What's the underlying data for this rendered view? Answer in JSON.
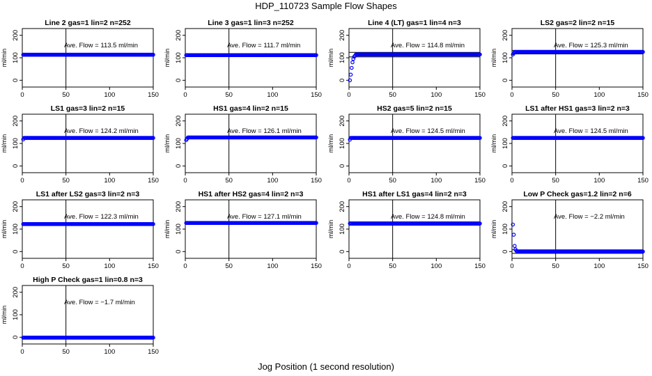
{
  "figure": {
    "title": "HDP_110723  Sample Flow Shapes",
    "xlabel": "Jog Position (1 second resolution)",
    "marker_color": "#0000ff"
  },
  "chart_data": [
    {
      "type": "scatter",
      "title": "Line 2 gas=1 lin=2 n=252",
      "annotation": "Ave. Flow =  113.5  ml/min",
      "ylabel": "ml/min",
      "xlim": [
        0,
        150
      ],
      "ylim": [
        -30,
        230
      ],
      "xticks": [
        "0",
        "50",
        "100",
        "150"
      ],
      "yticks": [
        "0",
        "100",
        "200"
      ],
      "vline": 50,
      "hline": [
        113.5
      ],
      "profile": {
        "plateau": 113.5,
        "start": []
      }
    },
    {
      "type": "scatter",
      "title": "Line 3 gas=1 lin=3 n=252",
      "annotation": "Ave. Flow =  111.7  ml/min",
      "ylabel": "ml/min",
      "xlim": [
        0,
        150
      ],
      "ylim": [
        -30,
        230
      ],
      "xticks": [
        "0",
        "50",
        "100",
        "150"
      ],
      "yticks": [
        "0",
        "100",
        "200"
      ],
      "vline": 50,
      "hline": [
        111.7
      ],
      "profile": {
        "plateau": 111.7,
        "start": []
      }
    },
    {
      "type": "scatter",
      "title": "Line 4 (LT) gas=1 lin=4 n=3",
      "annotation": "Ave. Flow =  114.8  ml/min",
      "ylabel": "ml/min",
      "xlim": [
        0,
        150
      ],
      "ylim": [
        -30,
        230
      ],
      "xticks": [
        "0",
        "50",
        "100",
        "150"
      ],
      "yticks": [
        "0",
        "100",
        "200"
      ],
      "vline": 50,
      "hline": [
        104,
        124
      ],
      "profile": {
        "plateau": 115,
        "start": [
          [
            1,
            0
          ],
          [
            2,
            25
          ],
          [
            3,
            55
          ],
          [
            4,
            80
          ],
          [
            5,
            95
          ],
          [
            6,
            105
          ],
          [
            7,
            110
          ]
        ]
      }
    },
    {
      "type": "scatter",
      "title": "LS2 gas=2 lin=2 n=15",
      "annotation": "Ave. Flow =  125.3  ml/min",
      "ylabel": "ml/min",
      "xlim": [
        0,
        150
      ],
      "ylim": [
        -30,
        230
      ],
      "xticks": [
        "0",
        "50",
        "100",
        "150"
      ],
      "yticks": [
        "0",
        "100",
        "200"
      ],
      "vline": 50,
      "hline": [
        117,
        133
      ],
      "profile": {
        "plateau": 126,
        "start": [
          [
            1,
            115
          ],
          [
            2,
            120
          ]
        ]
      }
    },
    {
      "type": "scatter",
      "title": "LS1 gas=3 lin=2 n=15",
      "annotation": "Ave. Flow =  124.2  ml/min",
      "ylabel": "ml/min",
      "xlim": [
        0,
        150
      ],
      "ylim": [
        -30,
        230
      ],
      "xticks": [
        "0",
        "50",
        "100",
        "150"
      ],
      "yticks": [
        "0",
        "100",
        "200"
      ],
      "vline": 50,
      "hline": [
        124.2
      ],
      "profile": {
        "plateau": 124.5,
        "start": [
          [
            1,
            118
          ]
        ]
      }
    },
    {
      "type": "scatter",
      "title": "HS1 gas=4 lin=2 n=15",
      "annotation": "Ave. Flow =  126.1  ml/min",
      "ylabel": "ml/min",
      "xlim": [
        0,
        150
      ],
      "ylim": [
        -30,
        230
      ],
      "xticks": [
        "0",
        "50",
        "100",
        "150"
      ],
      "yticks": [
        "0",
        "100",
        "200"
      ],
      "vline": 50,
      "hline": [
        126.1
      ],
      "profile": {
        "plateau": 126.5,
        "start": [
          [
            1,
            115
          ],
          [
            2,
            120
          ]
        ]
      }
    },
    {
      "type": "scatter",
      "title": "HS2 gas=5 lin=2 n=15",
      "annotation": "Ave. Flow =  124.5  ml/min",
      "ylabel": "ml/min",
      "xlim": [
        0,
        150
      ],
      "ylim": [
        -30,
        230
      ],
      "xticks": [
        "0",
        "50",
        "100",
        "150"
      ],
      "yticks": [
        "0",
        "100",
        "200"
      ],
      "vline": 50,
      "hline": [
        124.5
      ],
      "profile": {
        "plateau": 124.5,
        "start": [
          [
            1,
            117
          ]
        ]
      }
    },
    {
      "type": "scatter",
      "title": "LS1 after HS1 gas=3 lin=2 n=3",
      "annotation": "Ave. Flow =  124.5  ml/min",
      "ylabel": "ml/min",
      "xlim": [
        0,
        150
      ],
      "ylim": [
        -30,
        230
      ],
      "xticks": [
        "0",
        "50",
        "100",
        "150"
      ],
      "yticks": [
        "0",
        "100",
        "200"
      ],
      "vline": 50,
      "hline": [
        124.5
      ],
      "profile": {
        "plateau": 124.5,
        "start": []
      }
    },
    {
      "type": "scatter",
      "title": "LS1 after LS2 gas=3 lin=2 n=3",
      "annotation": "Ave. Flow =  122.3  ml/min",
      "ylabel": "ml/min",
      "xlim": [
        0,
        150
      ],
      "ylim": [
        -30,
        230
      ],
      "xticks": [
        "0",
        "50",
        "100",
        "150"
      ],
      "yticks": [
        "0",
        "100",
        "200"
      ],
      "vline": 50,
      "hline": [
        122.3
      ],
      "profile": {
        "plateau": 122.3,
        "start": []
      }
    },
    {
      "type": "scatter",
      "title": "HS1 after HS2 gas=4 lin=2 n=3",
      "annotation": "Ave. Flow =  127.1  ml/min",
      "ylabel": "ml/min",
      "xlim": [
        0,
        150
      ],
      "ylim": [
        -30,
        230
      ],
      "xticks": [
        "0",
        "50",
        "100",
        "150"
      ],
      "yticks": [
        "0",
        "100",
        "200"
      ],
      "vline": 50,
      "hline": [
        127.1
      ],
      "profile": {
        "plateau": 127.1,
        "start": []
      }
    },
    {
      "type": "scatter",
      "title": "HS1 after LS1 gas=4 lin=2 n=3",
      "annotation": "Ave. Flow =  124.8  ml/min",
      "ylabel": "ml/min",
      "xlim": [
        0,
        150
      ],
      "ylim": [
        -30,
        230
      ],
      "xticks": [
        "0",
        "50",
        "100",
        "150"
      ],
      "yticks": [
        "0",
        "100",
        "200"
      ],
      "vline": 50,
      "hline": [
        117,
        132
      ],
      "profile": {
        "plateau": 124.8,
        "start": []
      }
    },
    {
      "type": "scatter",
      "title": "Low P Check gas=1.2 lin=2 n=6",
      "annotation": "Ave. Flow =  −2.2  ml/min",
      "ylabel": "ml/min",
      "xlim": [
        0,
        150
      ],
      "ylim": [
        -30,
        230
      ],
      "xticks": [
        "0",
        "50",
        "100",
        "150"
      ],
      "yticks": [
        "0",
        "100",
        "200"
      ],
      "vline": 50,
      "hline": [
        -8,
        8
      ],
      "profile": {
        "plateau": 0,
        "start": [
          [
            1,
            120
          ],
          [
            2,
            75
          ],
          [
            3,
            25
          ],
          [
            4,
            10
          ],
          [
            5,
            3
          ]
        ]
      }
    },
    {
      "type": "scatter",
      "title": "High P Check gas=1 lin=0.8 n=3",
      "annotation": "Ave. Flow =  −1.7  ml/min",
      "ylabel": "ml/min",
      "xlim": [
        0,
        150
      ],
      "ylim": [
        -30,
        230
      ],
      "xticks": [
        "0",
        "50",
        "100",
        "150"
      ],
      "yticks": [
        "0",
        "100",
        "200"
      ],
      "vline": 50,
      "hline": [
        -1.7
      ],
      "profile": {
        "plateau": -1.7,
        "start": []
      }
    }
  ]
}
